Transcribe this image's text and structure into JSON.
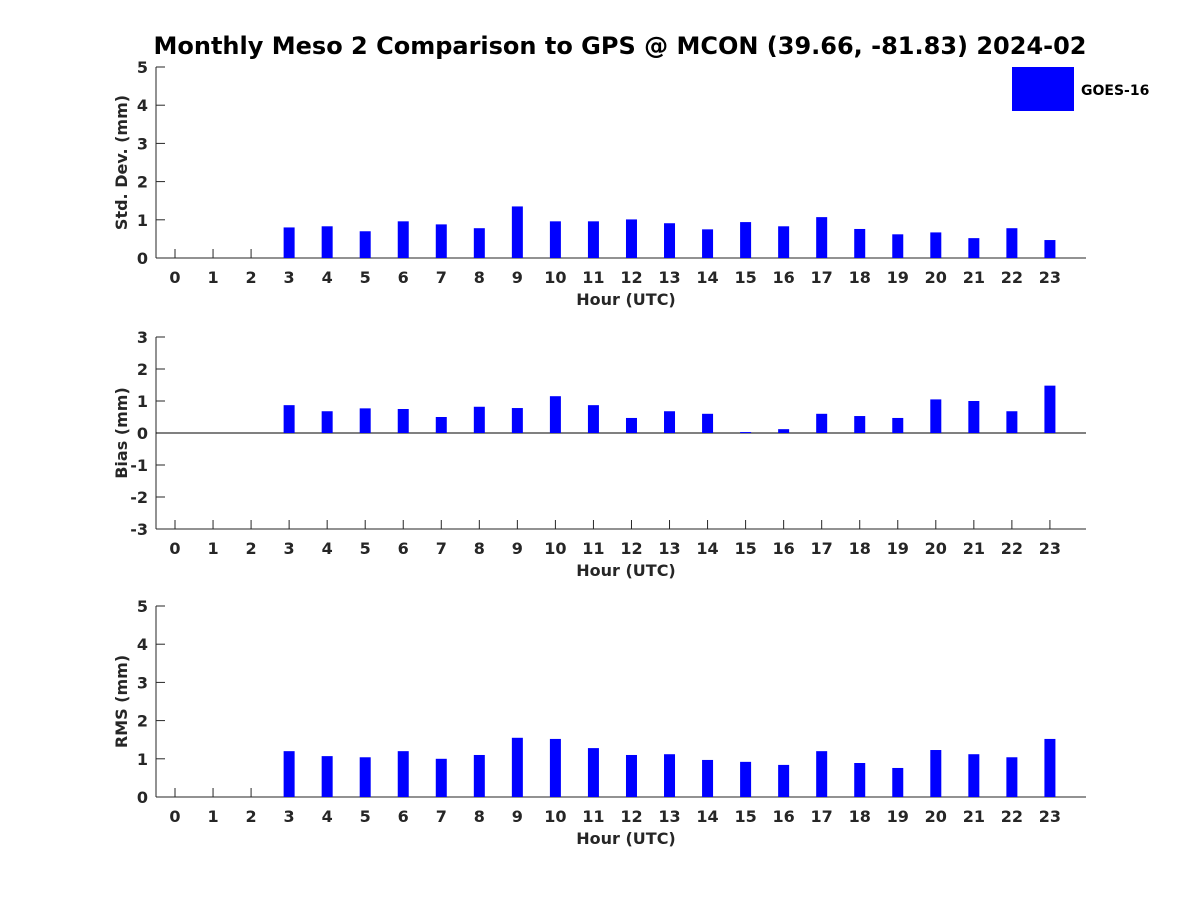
{
  "title": "Monthly Meso 2 Comparison to GPS @ MCON (39.66, -81.83) 2024-02",
  "legend": {
    "label": "GOES-16",
    "color": "#0000ff"
  },
  "chart_data": [
    {
      "type": "bar",
      "ylabel": "Std. Dev. (mm)",
      "xlabel": "Hour (UTC)",
      "ylim": [
        0,
        5
      ],
      "yticks": [
        "0",
        "1",
        "2",
        "3",
        "4",
        "5"
      ],
      "categories": [
        "0",
        "1",
        "2",
        "3",
        "4",
        "5",
        "6",
        "7",
        "8",
        "9",
        "10",
        "11",
        "12",
        "13",
        "14",
        "15",
        "16",
        "17",
        "18",
        "19",
        "20",
        "21",
        "22",
        "23"
      ],
      "series": [
        {
          "name": "GOES-16",
          "values": [
            null,
            null,
            null,
            0.8,
            0.83,
            0.7,
            0.96,
            0.88,
            0.78,
            1.35,
            0.96,
            0.96,
            1.01,
            0.91,
            0.75,
            0.94,
            0.83,
            1.07,
            0.76,
            0.62,
            0.67,
            0.52,
            0.78,
            0.47
          ]
        }
      ],
      "grid": false
    },
    {
      "type": "bar",
      "ylabel": "Bias (mm)",
      "xlabel": "Hour (UTC)",
      "ylim": [
        -3,
        3
      ],
      "yticks": [
        "-3",
        "-2",
        "-1",
        "0",
        "1",
        "2",
        "3"
      ],
      "categories": [
        "0",
        "1",
        "2",
        "3",
        "4",
        "5",
        "6",
        "7",
        "8",
        "9",
        "10",
        "11",
        "12",
        "13",
        "14",
        "15",
        "16",
        "17",
        "18",
        "19",
        "20",
        "21",
        "22",
        "23"
      ],
      "series": [
        {
          "name": "GOES-16",
          "values": [
            null,
            null,
            null,
            0.87,
            0.68,
            0.77,
            0.75,
            0.5,
            0.82,
            0.78,
            1.15,
            0.87,
            0.47,
            0.68,
            0.6,
            0.03,
            0.12,
            0.6,
            0.53,
            0.47,
            1.05,
            1.0,
            0.68,
            1.48
          ]
        }
      ],
      "zero_line": true,
      "grid": false
    },
    {
      "type": "bar",
      "ylabel": "RMS (mm)",
      "xlabel": "Hour (UTC)",
      "ylim": [
        0,
        5
      ],
      "yticks": [
        "0",
        "1",
        "2",
        "3",
        "4",
        "5"
      ],
      "categories": [
        "0",
        "1",
        "2",
        "3",
        "4",
        "5",
        "6",
        "7",
        "8",
        "9",
        "10",
        "11",
        "12",
        "13",
        "14",
        "15",
        "16",
        "17",
        "18",
        "19",
        "20",
        "21",
        "22",
        "23"
      ],
      "series": [
        {
          "name": "GOES-16",
          "values": [
            null,
            null,
            null,
            1.2,
            1.07,
            1.04,
            1.2,
            1.0,
            1.1,
            1.55,
            1.52,
            1.28,
            1.1,
            1.12,
            0.97,
            0.92,
            0.84,
            1.2,
            0.89,
            0.76,
            1.23,
            1.12,
            1.04,
            1.52
          ]
        }
      ],
      "grid": false
    }
  ]
}
